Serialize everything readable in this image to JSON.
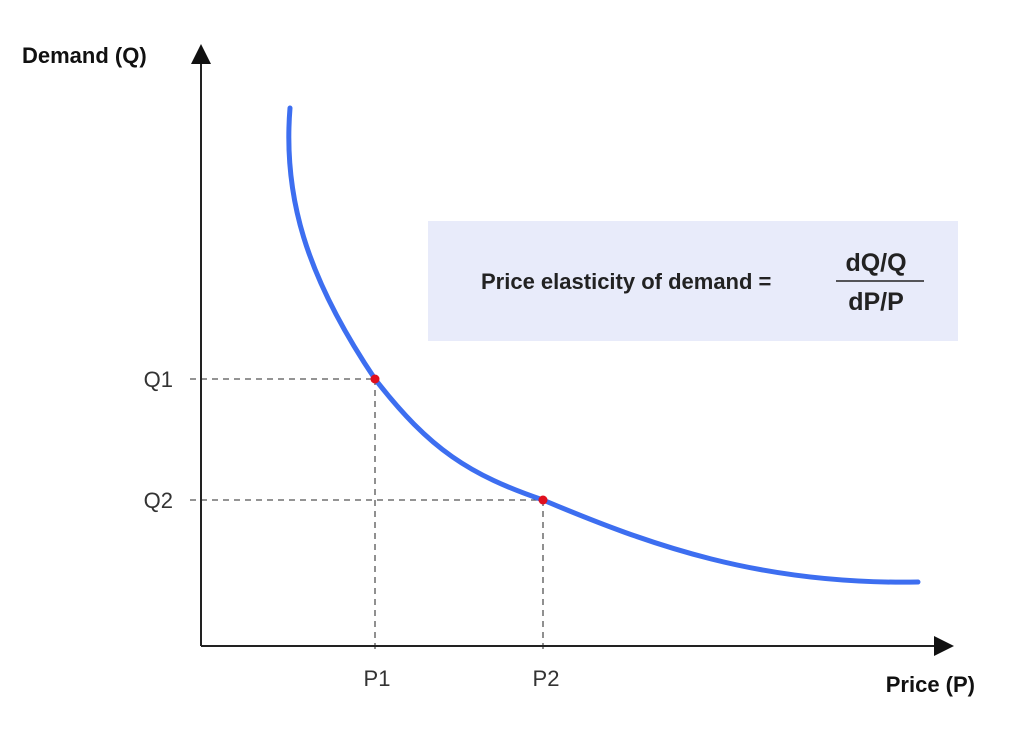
{
  "axes": {
    "y_title": "Demand (Q)",
    "x_title": "Price (P)"
  },
  "ticks": {
    "q1": "Q1",
    "q2": "Q2",
    "p1": "P1",
    "p2": "P2"
  },
  "formula": {
    "label": "Price elasticity of demand =",
    "numerator": "dQ/Q",
    "denominator": "dP/P"
  },
  "colors": {
    "curve": "#3d6ef0",
    "point": "#e0101e",
    "formula_box": "#e8ebfa",
    "axis": "#222222",
    "guide": "#555555"
  }
}
